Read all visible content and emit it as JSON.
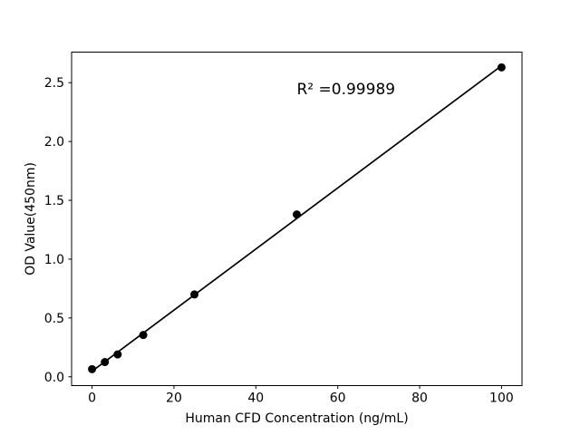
{
  "figure": {
    "background_color": "#ffffff",
    "foreground_color": "#000000"
  },
  "chart_data": {
    "type": "scatter",
    "title": "",
    "xlabel": "Human CFD Concentration (ng/mL)",
    "ylabel": "OD Value(450nm)",
    "x": [
      0,
      3.125,
      6.25,
      12.5,
      25,
      50,
      100
    ],
    "y": [
      0.065,
      0.125,
      0.19,
      0.355,
      0.7,
      1.38,
      2.63
    ],
    "fit_line": {
      "show": true,
      "x_start": 0,
      "x_end": 100
    },
    "annotation": {
      "text": "R² =0.99989",
      "x": 50,
      "y": 2.4
    },
    "xticks": [
      "0",
      "20",
      "40",
      "60",
      "80",
      "100"
    ],
    "xtick_values": [
      0,
      20,
      40,
      60,
      80,
      100
    ],
    "yticks": [
      "0.0",
      "0.5",
      "1.0",
      "1.5",
      "2.0",
      "2.5"
    ],
    "ytick_values": [
      0.0,
      0.5,
      1.0,
      1.5,
      2.0,
      2.5
    ],
    "xlim": [
      -5,
      105
    ],
    "ylim": [
      -0.075,
      2.76
    ],
    "grid": false,
    "legend": null,
    "marker_color": "#000000",
    "line_color": "#000000"
  }
}
